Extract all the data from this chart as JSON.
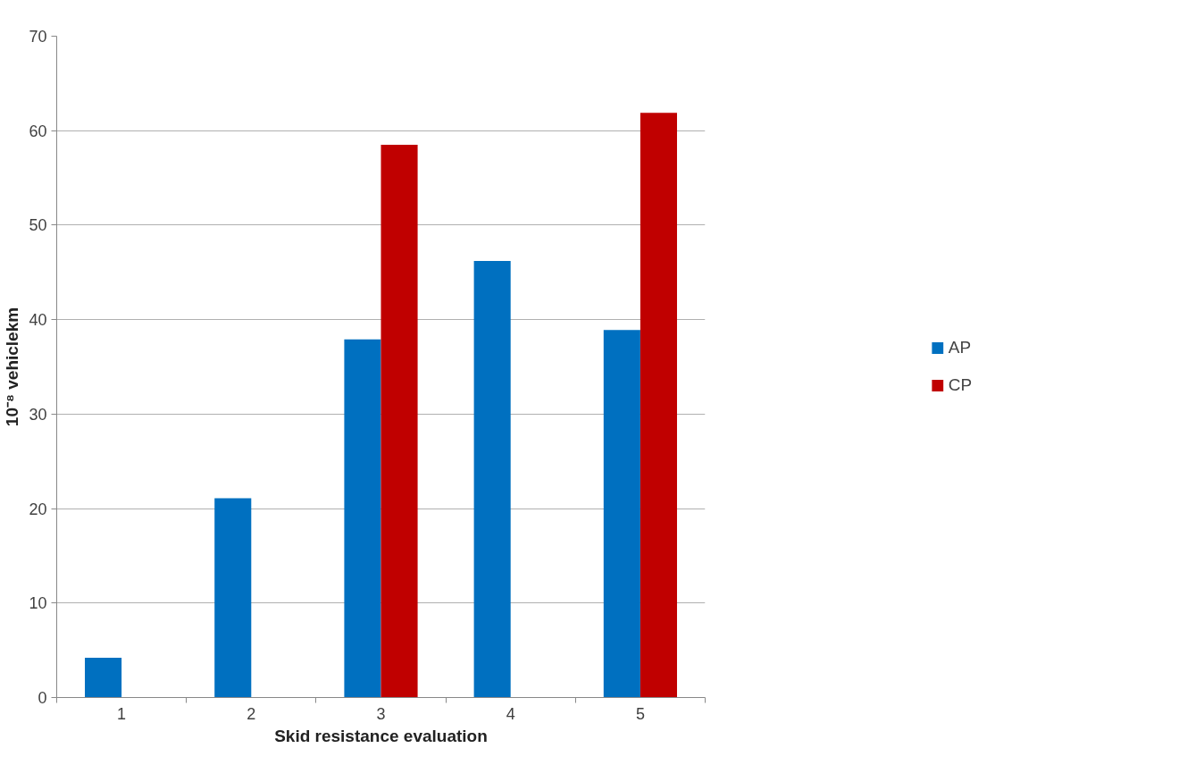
{
  "chart_data": {
    "type": "bar",
    "xlabel": "Skid resistance evaluation",
    "ylabel": "10⁻⁸ vehiclekm",
    "categories": [
      "1",
      "2",
      "3",
      "4",
      "5"
    ],
    "series": [
      {
        "name": "AP",
        "color": "#0070c0",
        "values": [
          4.2,
          21.1,
          37.9,
          46.2,
          38.9
        ]
      },
      {
        "name": "CP",
        "color": "#c00000",
        "values": [
          null,
          null,
          58.5,
          null,
          61.9
        ]
      }
    ],
    "ylim": [
      0,
      70
    ],
    "yticks": [
      0,
      10,
      20,
      30,
      40,
      50,
      60,
      70
    ],
    "grid": "y",
    "legend": "right"
  }
}
